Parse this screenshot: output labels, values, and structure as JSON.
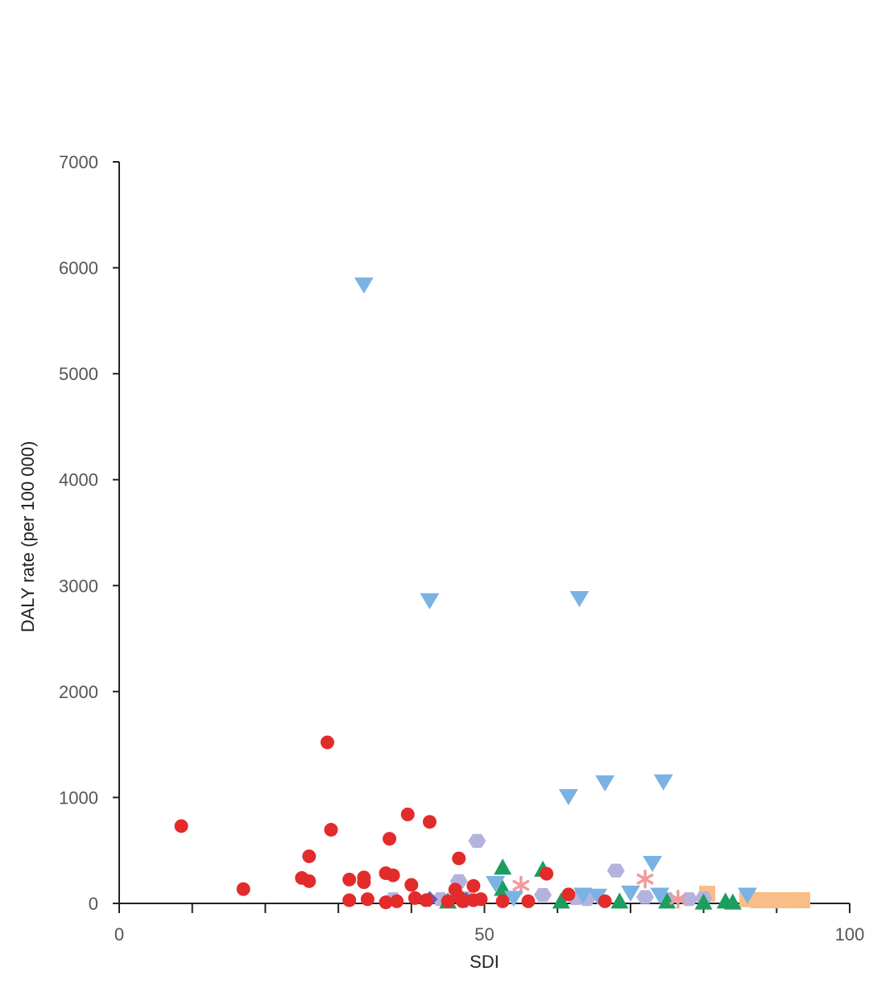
{
  "chart_data": {
    "type": "scatter",
    "title": "",
    "xlabel": "SDI",
    "ylabel": "DALY rate (per 100 000)",
    "xlim": [
      0,
      100
    ],
    "ylim": [
      0,
      7000
    ],
    "x_ticks": [
      0,
      50,
      100
    ],
    "x_minor_ticks": [
      10,
      20,
      30,
      40,
      60,
      70,
      80,
      90
    ],
    "y_ticks": [
      0,
      1000,
      2000,
      3000,
      4000,
      5000,
      6000,
      7000
    ],
    "grid": false,
    "legend": "none",
    "series": [
      {
        "marker": "circle",
        "color": "#e32b2b",
        "points": [
          [
            8.5,
            730
          ],
          [
            17,
            135
          ],
          [
            25,
            240
          ],
          [
            26,
            445
          ],
          [
            26,
            210
          ],
          [
            28.5,
            1520
          ],
          [
            29,
            695
          ],
          [
            31.5,
            225
          ],
          [
            31.5,
            30
          ],
          [
            33.5,
            245
          ],
          [
            33.5,
            200
          ],
          [
            34,
            40
          ],
          [
            36.5,
            285
          ],
          [
            36.5,
            10
          ],
          [
            37,
            610
          ],
          [
            37.5,
            265
          ],
          [
            38,
            20
          ],
          [
            39.5,
            840
          ],
          [
            40,
            175
          ],
          [
            40.5,
            50
          ],
          [
            42,
            30
          ],
          [
            42.5,
            770
          ],
          [
            45,
            20
          ],
          [
            46,
            130
          ],
          [
            46.5,
            425
          ],
          [
            46.5,
            60
          ],
          [
            47,
            20
          ],
          [
            48.5,
            165
          ],
          [
            48.5,
            30
          ],
          [
            49.5,
            40
          ],
          [
            52.5,
            20
          ],
          [
            56,
            20
          ],
          [
            58.5,
            280
          ],
          [
            61.5,
            85
          ],
          [
            66.5,
            20
          ]
        ]
      },
      {
        "marker": "triangle-down",
        "color": "#7ab3e3",
        "points": [
          [
            33.5,
            5840
          ],
          [
            42.5,
            2860
          ],
          [
            63,
            2880
          ],
          [
            61.5,
            1010
          ],
          [
            66.5,
            1140
          ],
          [
            74.5,
            1150
          ],
          [
            73,
            380
          ],
          [
            51.5,
            190
          ],
          [
            54,
            50
          ],
          [
            63.5,
            80
          ],
          [
            65.5,
            70
          ],
          [
            70,
            100
          ],
          [
            74,
            80
          ],
          [
            86,
            80
          ]
        ]
      },
      {
        "marker": "triangle-up",
        "color": "#1b9e5e",
        "points": [
          [
            52.5,
            340
          ],
          [
            58,
            320
          ],
          [
            52.5,
            140
          ],
          [
            45,
            20
          ],
          [
            60.5,
            20
          ],
          [
            68.5,
            20
          ],
          [
            75,
            20
          ],
          [
            80,
            10
          ],
          [
            83,
            20
          ],
          [
            84,
            10
          ]
        ]
      },
      {
        "marker": "hexagon",
        "color": "#b3b3dd",
        "points": [
          [
            49,
            590
          ],
          [
            46.5,
            210
          ],
          [
            68,
            310
          ],
          [
            37.5,
            40
          ],
          [
            44,
            40
          ],
          [
            47.5,
            50
          ],
          [
            58,
            80
          ],
          [
            62.5,
            50
          ],
          [
            64,
            40
          ],
          [
            72,
            60
          ],
          [
            75,
            40
          ],
          [
            78,
            40
          ],
          [
            80,
            50
          ]
        ]
      },
      {
        "marker": "asterisk",
        "color": "#f29999",
        "points": [
          [
            55,
            170
          ],
          [
            72,
            230
          ],
          [
            76.5,
            40
          ]
        ]
      },
      {
        "marker": "square",
        "color": "#f9bd87",
        "points": [
          [
            80.5,
            90
          ],
          [
            86,
            40
          ],
          [
            87.5,
            30
          ],
          [
            89,
            30
          ],
          [
            90.5,
            30
          ],
          [
            92,
            30
          ],
          [
            93.5,
            30
          ]
        ]
      },
      {
        "marker": "diamond",
        "color": "#7b4fa0",
        "points": [
          [
            42.5,
            40
          ],
          [
            47.5,
            30
          ]
        ]
      }
    ]
  }
}
